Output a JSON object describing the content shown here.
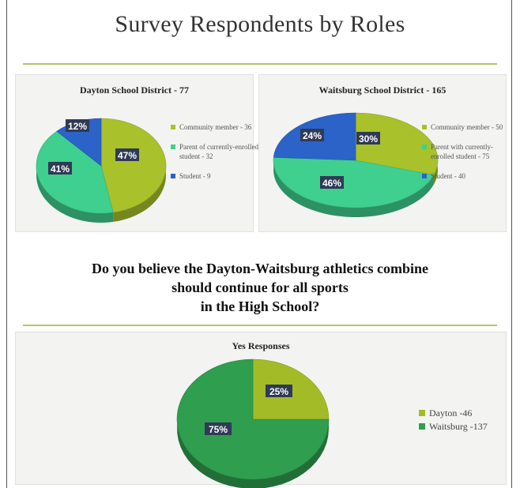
{
  "title": "Survey Respondents by Roles",
  "question_lines": [
    "Do you believe the Dayton-Waitsburg athletics combine",
    "should continue for all sports",
    "in the High School?"
  ],
  "colors": {
    "community": "#a9c12b",
    "parent": "#3fcf8e",
    "student": "#2b63c8",
    "dayton": "#a3bb27",
    "waitsburg": "#2f9e4f",
    "rule": "#b6c46a"
  },
  "chart_data": [
    {
      "type": "pie",
      "title": "Dayton School District - 77",
      "series": [
        {
          "label": "Community member - 36",
          "value": 47,
          "display": "47%",
          "color_key": "community"
        },
        {
          "label": "Parent of currently-enrolled student - 32",
          "value": 41,
          "display": "41%",
          "color_key": "parent"
        },
        {
          "label": "Student - 9",
          "value": 12,
          "display": "12%",
          "color_key": "student"
        }
      ]
    },
    {
      "type": "pie",
      "title": "Waitsburg School District - 165",
      "series": [
        {
          "label": "Community member - 50",
          "value": 30,
          "display": "30%",
          "color_key": "community"
        },
        {
          "label": "Parent with currently-enrolled student - 75",
          "value": 46,
          "display": "46%",
          "color_key": "parent"
        },
        {
          "label": "Student - 40",
          "value": 24,
          "display": "24%",
          "color_key": "student"
        }
      ]
    },
    {
      "type": "pie",
      "title": "Yes Responses",
      "series": [
        {
          "label": "Dayton -46",
          "value": 25,
          "display": "25%",
          "color_key": "dayton"
        },
        {
          "label": "Waitsburg -137",
          "value": 75,
          "display": "75%",
          "color_key": "waitsburg"
        }
      ]
    }
  ]
}
